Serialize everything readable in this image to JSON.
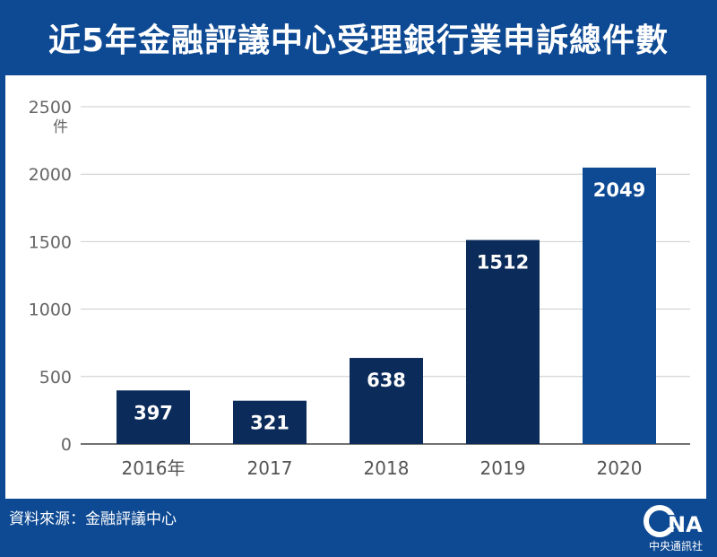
{
  "header": {
    "title": "近5年金融評議中心受理銀行業申訴總件數"
  },
  "footer": {
    "source": "資料來源：金融評議中心",
    "logo_text": "CNA",
    "logo_name": "中央通訊社"
  },
  "colors": {
    "background": "#0e4a93",
    "bar": "#0b2b5a",
    "bar_highlight": "#0e4a93",
    "grid": "#cccccc"
  },
  "chart_data": {
    "type": "bar",
    "title": "近5年金融評議中心受理銀行業申訴總件數",
    "categories": [
      "2016年",
      "2017",
      "2018",
      "2019",
      "2020"
    ],
    "values": [
      397,
      321,
      638,
      1512,
      2049
    ],
    "value_labels": [
      "397",
      "321",
      "638",
      "1512",
      "2049"
    ],
    "highlight_index": 4,
    "yunit": "件",
    "ylim": [
      0,
      2500
    ],
    "yticks": [
      0,
      500,
      1000,
      1500,
      2000,
      2500
    ],
    "ytick_labels": [
      "0",
      "500",
      "1000",
      "1500",
      "2000",
      "2500"
    ],
    "grid": true,
    "legend": "none"
  }
}
